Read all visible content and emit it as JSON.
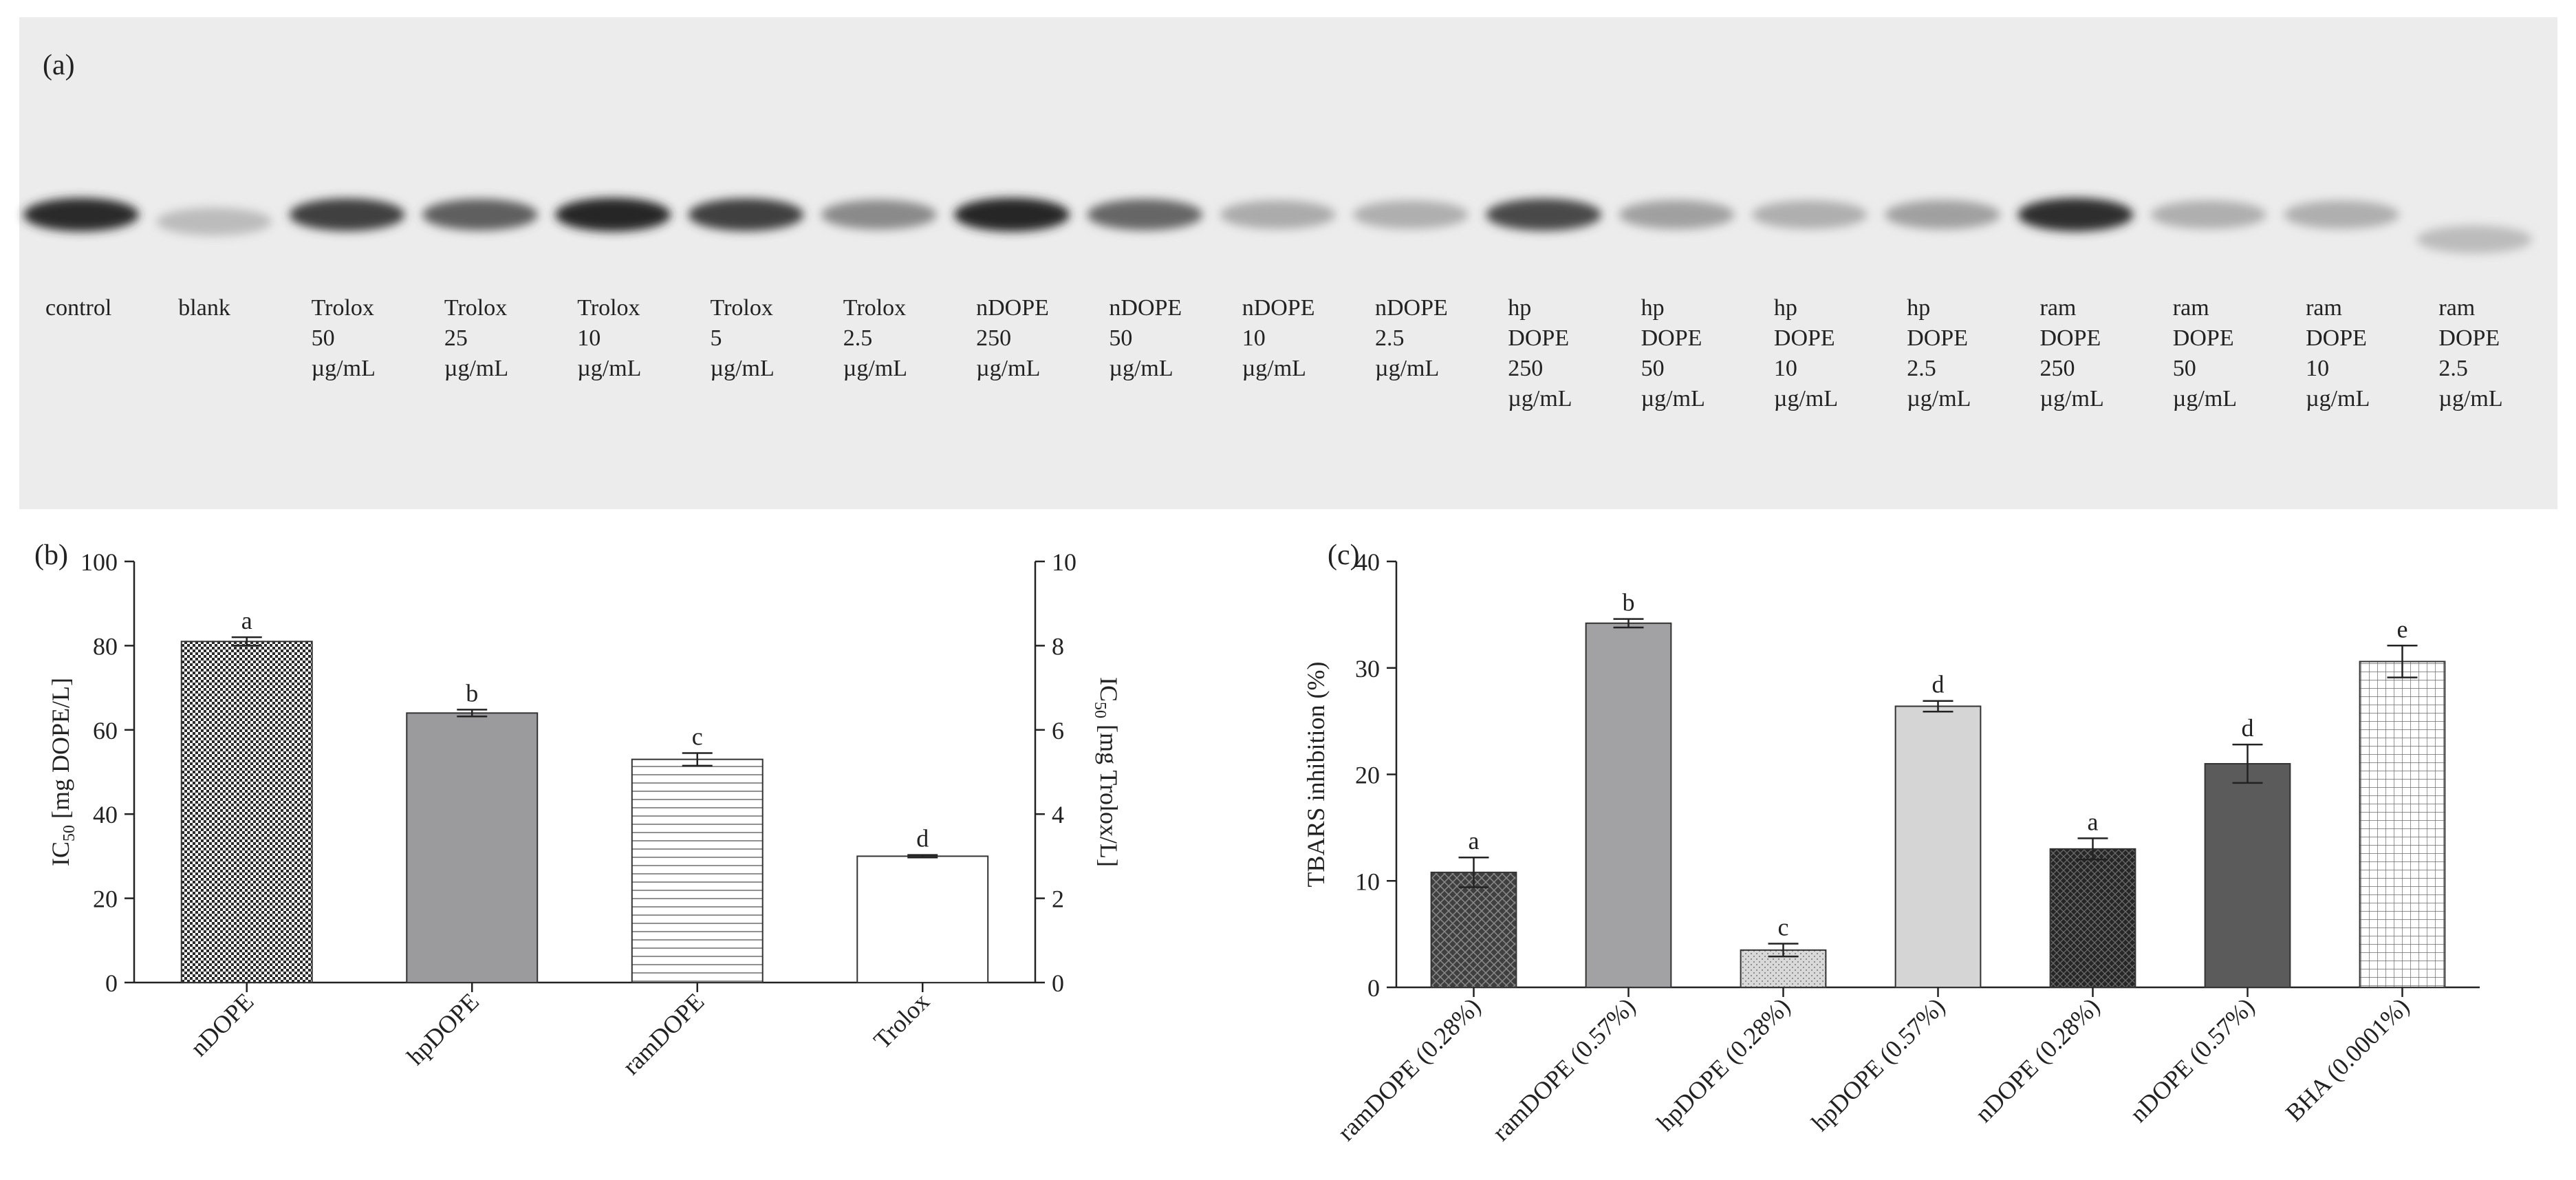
{
  "panel_a": {
    "label": "(a)",
    "lanes": [
      {
        "lines": [
          "control"
        ],
        "band": 0.9
      },
      {
        "lines": [
          "blank"
        ],
        "band": 0.22
      },
      {
        "lines": [
          "Trolox",
          "50",
          "µg/mL"
        ],
        "band": 0.8
      },
      {
        "lines": [
          "Trolox",
          "25",
          "µg/mL"
        ],
        "band": 0.65
      },
      {
        "lines": [
          "Trolox",
          "10",
          "µg/mL"
        ],
        "band": 0.92
      },
      {
        "lines": [
          "Trolox",
          "5",
          "µg/mL"
        ],
        "band": 0.8
      },
      {
        "lines": [
          "Trolox",
          "2.5",
          "µg/mL"
        ],
        "band": 0.45
      },
      {
        "lines": [
          "nDOPE",
          "250",
          "µg/mL"
        ],
        "band": 0.92
      },
      {
        "lines": [
          "nDOPE",
          "50",
          "µg/mL"
        ],
        "band": 0.62
      },
      {
        "lines": [
          "nDOPE",
          "10",
          "µg/mL"
        ],
        "band": 0.3
      },
      {
        "lines": [
          "nDOPE",
          "2.5",
          "µg/mL"
        ],
        "band": 0.28
      },
      {
        "lines": [
          "hp",
          "DOPE",
          "250",
          "µg/mL"
        ],
        "band": 0.75
      },
      {
        "lines": [
          "hp",
          "DOPE",
          "50",
          "µg/mL"
        ],
        "band": 0.35
      },
      {
        "lines": [
          "hp",
          "DOPE",
          "10",
          "µg/mL"
        ],
        "band": 0.28
      },
      {
        "lines": [
          "hp",
          "DOPE",
          "2.5",
          "µg/mL"
        ],
        "band": 0.35
      },
      {
        "lines": [
          "ram",
          "DOPE",
          "250",
          "µg/mL"
        ],
        "band": 0.88
      },
      {
        "lines": [
          "ram",
          "DOPE",
          "50",
          "µg/mL"
        ],
        "band": 0.28
      },
      {
        "lines": [
          "ram",
          "DOPE",
          "10",
          "µg/mL"
        ],
        "band": 0.28
      },
      {
        "lines": [
          "ram",
          "DOPE",
          "2.5",
          "µg/mL"
        ],
        "band": 0.22
      }
    ]
  },
  "chart_data": [
    {
      "type": "bar",
      "panel": "(b)",
      "categories": [
        "nDOPE",
        "hpDOPE",
        "ramDOPE",
        "Trolox"
      ],
      "values": [
        81,
        64,
        53,
        30
      ],
      "errors": [
        1,
        0.8,
        1.5,
        0.3
      ],
      "letters": [
        "a",
        "b",
        "c",
        "d"
      ],
      "fills": [
        "checker",
        "#9b9b9e",
        "hlines",
        "#ffffff"
      ],
      "ylabel": "IC50 [mg DOPE/L]",
      "ylabel_main": "IC",
      "ylabel_sub": "50",
      "ylabel_rest": " [mg DOPE/L]",
      "ylim": [
        0,
        100
      ],
      "yticks": [
        0,
        20,
        40,
        60,
        80,
        100
      ],
      "y2label": "IC50 [mg Trolox/L]",
      "y2label_main": "IC",
      "y2label_sub": "50",
      "y2label_rest": " [mg Trolox/L]",
      "y2lim": [
        0,
        10
      ],
      "y2ticks": [
        0,
        2,
        4,
        6,
        8,
        10
      ]
    },
    {
      "type": "bar",
      "panel": "(c)",
      "categories": [
        "ramDOPE (0.28%)",
        "ramDOPE (0.57%)",
        "hpDOPE (0.28%)",
        "hpDOPE (0.57%)",
        "nDOPE (0.28%)",
        "nDOPE (0.57%)",
        "BHA (0.0001%)"
      ],
      "values": [
        10.8,
        34.2,
        3.5,
        26.4,
        13.0,
        21.0,
        30.6
      ],
      "errors": [
        1.4,
        0.4,
        0.6,
        0.5,
        1.0,
        1.8,
        1.5
      ],
      "letters": [
        "a",
        "b",
        "c",
        "d",
        "a",
        "d",
        "e"
      ],
      "fills": [
        "diamond",
        "#a2a2a4",
        "dots",
        "#d5d5d5",
        "diamond-dark",
        "#5b5b5b",
        "grid"
      ],
      "ylabel": "TBARS inhibition (%)",
      "ylim": [
        0,
        40
      ],
      "yticks": [
        0,
        10,
        20,
        30,
        40
      ]
    }
  ]
}
